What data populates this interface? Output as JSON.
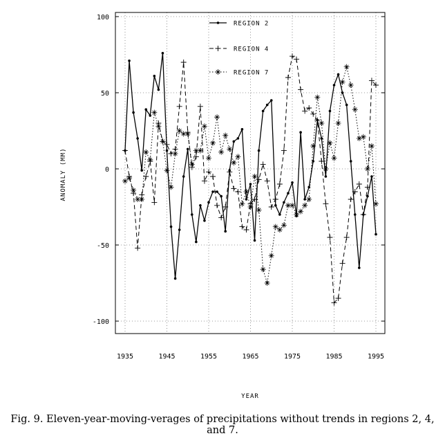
{
  "caption": "Fig. 9. Eleven-year-moving-verages of precipitations without trends in regions 2, 4, and 7.",
  "chart_data": {
    "type": "line",
    "xlabel": "YEAR",
    "ylabel": "ANOMALY (MM)",
    "xlim": [
      1935,
      1995
    ],
    "ylim": [
      -100,
      100
    ],
    "x_ticks": [
      "1935",
      "1945",
      "1955",
      "1965",
      "1975",
      "1985",
      "1995"
    ],
    "y_ticks": [
      "100",
      "50",
      "0",
      "-50",
      "-100"
    ],
    "grid": true,
    "legend_position": "top-center",
    "x": [
      1935,
      1936,
      1937,
      1938,
      1939,
      1940,
      1941,
      1942,
      1943,
      1944,
      1945,
      1946,
      1947,
      1948,
      1949,
      1950,
      1951,
      1952,
      1953,
      1954,
      1955,
      1956,
      1957,
      1958,
      1959,
      1960,
      1961,
      1962,
      1963,
      1964,
      1965,
      1966,
      1967,
      1968,
      1969,
      1970,
      1971,
      1972,
      1973,
      1974,
      1975,
      1976,
      1977,
      1978,
      1979,
      1980,
      1981,
      1982,
      1983,
      1984,
      1985,
      1986,
      1987,
      1988,
      1989,
      1990,
      1991,
      1992,
      1993,
      1994,
      1995
    ],
    "series": [
      {
        "name": "REGION 2",
        "style": "solid",
        "marker": "dot",
        "values": [
          12,
          71,
          37,
          20,
          -1,
          39,
          35,
          61,
          52,
          76,
          12,
          -38,
          -72,
          -40,
          -5,
          13,
          -30,
          -48,
          -24,
          -34,
          -22,
          -15,
          -15,
          -18,
          -41,
          -1,
          18,
          20,
          26,
          -20,
          -10,
          -47,
          12,
          38,
          42,
          45,
          -24,
          -30,
          -22,
          -16,
          -9,
          -31,
          24,
          -20,
          -12,
          5,
          32,
          20,
          -5,
          38,
          55,
          62,
          50,
          42,
          5,
          -30,
          -65,
          -30,
          -18,
          -5,
          -43
        ]
      },
      {
        "name": "REGION 4",
        "style": "dashed",
        "marker": "plus",
        "values": [
          12,
          -5,
          -16,
          -52,
          -17,
          -5,
          5,
          -22,
          30,
          18,
          16,
          10,
          13,
          41,
          70,
          24,
          1,
          8,
          41,
          -8,
          -2,
          -5,
          -24,
          -32,
          -25,
          -2,
          -13,
          -15,
          -38,
          -40,
          -23,
          -20,
          -7,
          3,
          -8,
          -25,
          -20,
          -10,
          12,
          60,
          74,
          72,
          52,
          38,
          40,
          36,
          32,
          5,
          -23,
          -45,
          -88,
          -85,
          -62,
          -45,
          -20,
          -15,
          -10,
          -30,
          -12,
          58,
          55
        ]
      },
      {
        "name": "REGION 7",
        "style": "dotted",
        "marker": "asterisk",
        "values": [
          -8,
          -6,
          -14,
          -20,
          -20,
          11,
          6,
          37,
          28,
          18,
          -1,
          -12,
          10,
          25,
          23,
          23,
          3,
          12,
          12,
          28,
          7,
          17,
          34,
          11,
          22,
          13,
          4,
          8,
          -23,
          -15,
          -25,
          -5,
          -27,
          -66,
          -75,
          -57,
          -38,
          -40,
          -37,
          -24,
          -24,
          -30,
          -28,
          -24,
          -20,
          15,
          47,
          30,
          0,
          17,
          7,
          30,
          57,
          67,
          55,
          39,
          20,
          21,
          0,
          15,
          -23
        ]
      }
    ]
  }
}
